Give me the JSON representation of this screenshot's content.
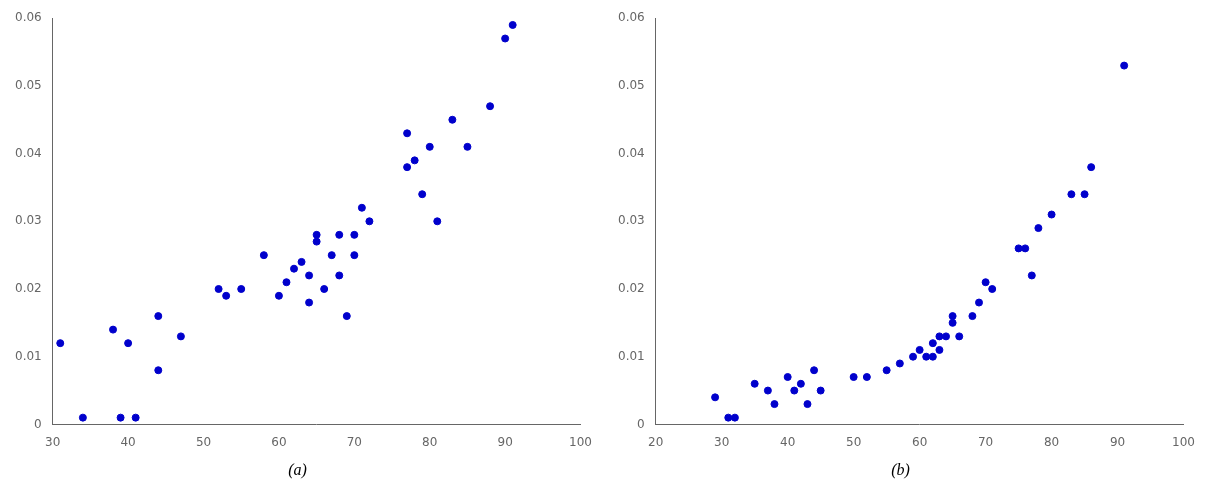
{
  "chart_data": [
    {
      "type": "scatter",
      "title": "(a)",
      "x": [
        31,
        34,
        38,
        39,
        40,
        41,
        44,
        44,
        47,
        52,
        53,
        55,
        58,
        60,
        61,
        62,
        63,
        64,
        64,
        65,
        65,
        66,
        67,
        68,
        68,
        69,
        70,
        70,
        71,
        72,
        77,
        77,
        78,
        79,
        80,
        81,
        83,
        85,
        88,
        90,
        91
      ],
      "values": [
        0.012,
        0.001,
        0.014,
        0.001,
        0.012,
        0.001,
        0.008,
        0.016,
        0.013,
        0.02,
        0.019,
        0.02,
        0.025,
        0.019,
        0.021,
        0.023,
        0.024,
        0.018,
        0.022,
        0.028,
        0.027,
        0.02,
        0.025,
        0.028,
        0.022,
        0.016,
        0.028,
        0.025,
        0.032,
        0.03,
        0.043,
        0.038,
        0.039,
        0.034,
        0.041,
        0.03,
        0.045,
        0.041,
        0.047,
        0.057,
        0.059
      ],
      "color": "#0000CC",
      "xlim": [
        30,
        100
      ],
      "xticks": [
        30,
        40,
        50,
        60,
        70,
        80,
        90,
        100
      ],
      "ylim": [
        0,
        0.06
      ],
      "yticks": [
        0,
        0.01,
        0.02,
        0.03,
        0.04,
        0.05,
        0.06
      ],
      "grid": false
    },
    {
      "type": "scatter",
      "title": "(b)",
      "x": [
        29,
        31,
        32,
        35,
        37,
        38,
        40,
        41,
        42,
        43,
        44,
        45,
        50,
        52,
        55,
        57,
        59,
        60,
        61,
        62,
        62,
        63,
        63,
        64,
        65,
        65,
        66,
        68,
        69,
        70,
        71,
        75,
        76,
        77,
        78,
        80,
        83,
        85,
        86,
        91
      ],
      "values": [
        0.004,
        0.001,
        0.001,
        0.006,
        0.005,
        0.003,
        0.007,
        0.005,
        0.006,
        0.003,
        0.008,
        0.005,
        0.007,
        0.007,
        0.008,
        0.009,
        0.01,
        0.011,
        0.01,
        0.012,
        0.01,
        0.013,
        0.011,
        0.013,
        0.015,
        0.016,
        0.013,
        0.016,
        0.018,
        0.021,
        0.02,
        0.026,
        0.026,
        0.022,
        0.029,
        0.031,
        0.034,
        0.034,
        0.038,
        0.053
      ],
      "color": "#0000CC",
      "xlim": [
        20,
        100
      ],
      "xticks": [
        20,
        30,
        40,
        50,
        60,
        70,
        80,
        90,
        100
      ],
      "ylim": [
        0,
        0.06
      ],
      "yticks": [
        0,
        0.01,
        0.02,
        0.03,
        0.04,
        0.05,
        0.06
      ],
      "grid": false
    }
  ]
}
